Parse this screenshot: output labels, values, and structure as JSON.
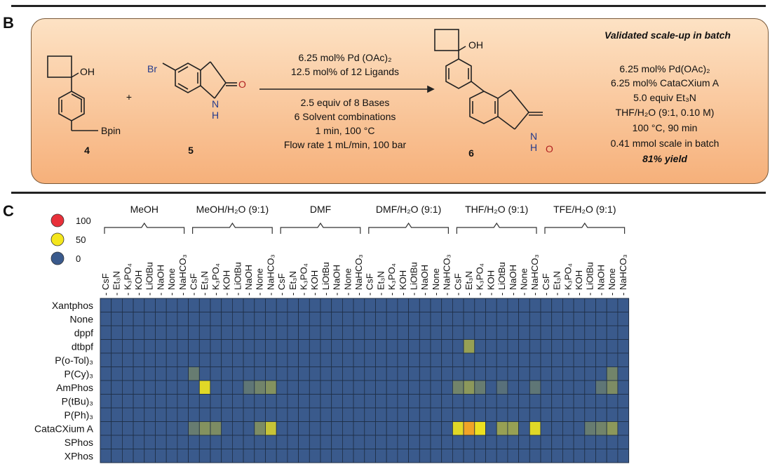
{
  "panel_b": {
    "label": "B",
    "compound_4": {
      "substituent_oh": "OH",
      "substituent_bpin": "Bpin",
      "number": "4"
    },
    "plus": "+",
    "compound_5": {
      "substituent_br": "Br",
      "nh": "N",
      "h": "H",
      "carbonyl_o": "O",
      "number": "5"
    },
    "conditions": [
      "6.25 mol% Pd (OAc)₂",
      "12.5 mol% of 12 Ligands",
      "2.5 equiv of 8 Bases",
      "6 Solvent combinations",
      "1 min, 100 °C",
      "Flow rate 1 mL/min, 100 bar"
    ],
    "compound_6": {
      "substituent_oh": "OH",
      "nh": "N",
      "h": "H",
      "carbonyl_o": "O",
      "number": "6"
    },
    "batch_title": "Validated scale-up in batch",
    "batch_conditions": [
      "6.25 mol% Pd(OAc)₂",
      "6.25 mol% CataCXium A",
      "5.0 equiv Et₃N",
      "THF/H₂O (9:1, 0.10 M)",
      "100 °C, 90 min",
      "0.41 mmol scale in batch"
    ],
    "batch_yield": "81% yield"
  },
  "panel_c": {
    "label": "C",
    "legend": [
      {
        "value": "100",
        "color": "#e8303a"
      },
      {
        "value": "50",
        "color": "#f4e61c"
      },
      {
        "value": "0",
        "color": "#3a5a8c"
      }
    ],
    "solvents": [
      "MeOH",
      "MeOH/H₂O (9:1)",
      "DMF",
      "DMF/H₂O (9:1)",
      "THF/H₂O (9:1)",
      "TFE/H₂O (9:1)"
    ],
    "bases": [
      "CsF",
      "Et₃N",
      "K₃PO₄",
      "KOH",
      "LiOtBu",
      "NaOH",
      "None",
      "NaHCO₃"
    ],
    "ligands": [
      "Xantphos",
      "None",
      "dppf",
      "dtbpf",
      "P(o-Tol)₃",
      "P(Cy)₃",
      "AmPhos",
      "P(tBu)₃",
      "P(Ph)₃",
      "CataCXium A",
      "SPhos",
      "XPhos"
    ]
  },
  "chart_data": {
    "type": "heatmap",
    "title": "",
    "x_groups": [
      "MeOH",
      "MeOH/H₂O (9:1)",
      "DMF",
      "DMF/H₂O (9:1)",
      "THF/H₂O (9:1)",
      "TFE/H₂O (9:1)"
    ],
    "x_subcategories": [
      "CsF",
      "Et₃N",
      "K₃PO₄",
      "KOH",
      "LiOtBu",
      "NaOH",
      "None",
      "NaHCO₃"
    ],
    "y_categories": [
      "Xantphos",
      "None",
      "dppf",
      "dtbpf",
      "P(o-Tol)₃",
      "P(Cy)₃",
      "AmPhos",
      "P(tBu)₃",
      "P(Ph)₃",
      "CataCXium A",
      "SPhos",
      "XPhos"
    ],
    "color_scale": {
      "min": 0,
      "mid": 50,
      "max": 100,
      "colors": [
        "#3a5a8c",
        "#f4e61c",
        "#e8303a"
      ]
    },
    "nonzero_cells": [
      {
        "ligand": "dtbpf",
        "solvent": "THF/H₂O (9:1)",
        "base": "Et₃N",
        "value": 25
      },
      {
        "ligand": "P(Cy)₃",
        "solvent": "MeOH/H₂O (9:1)",
        "base": "CsF",
        "value": 12
      },
      {
        "ligand": "P(Cy)₃",
        "solvent": "TFE/H₂O (9:1)",
        "base": "None",
        "value": 15
      },
      {
        "ligand": "AmPhos",
        "solvent": "MeOH/H₂O (9:1)",
        "base": "Et₃N",
        "value": 45
      },
      {
        "ligand": "AmPhos",
        "solvent": "MeOH/H₂O (9:1)",
        "base": "NaOH",
        "value": 10
      },
      {
        "ligand": "AmPhos",
        "solvent": "MeOH/H₂O (9:1)",
        "base": "None",
        "value": 15
      },
      {
        "ligand": "AmPhos",
        "solvent": "MeOH/H₂O (9:1)",
        "base": "NaHCO₃",
        "value": 20
      },
      {
        "ligand": "AmPhos",
        "solvent": "THF/H₂O (9:1)",
        "base": "CsF",
        "value": 15
      },
      {
        "ligand": "AmPhos",
        "solvent": "THF/H₂O (9:1)",
        "base": "Et₃N",
        "value": 22
      },
      {
        "ligand": "AmPhos",
        "solvent": "THF/H₂O (9:1)",
        "base": "K₃PO₄",
        "value": 12
      },
      {
        "ligand": "AmPhos",
        "solvent": "THF/H₂O (9:1)",
        "base": "LiOtBu",
        "value": 8
      },
      {
        "ligand": "AmPhos",
        "solvent": "THF/H₂O (9:1)",
        "base": "NaHCO₃",
        "value": 10
      },
      {
        "ligand": "AmPhos",
        "solvent": "TFE/H₂O (9:1)",
        "base": "NaOH",
        "value": 10
      },
      {
        "ligand": "AmPhos",
        "solvent": "TFE/H₂O (9:1)",
        "base": "None",
        "value": 18
      },
      {
        "ligand": "CataCXium A",
        "solvent": "MeOH/H₂O (9:1)",
        "base": "CsF",
        "value": 12
      },
      {
        "ligand": "CataCXium A",
        "solvent": "MeOH/H₂O (9:1)",
        "base": "Et₃N",
        "value": 20
      },
      {
        "ligand": "CataCXium A",
        "solvent": "MeOH/H₂O (9:1)",
        "base": "K₃PO₄",
        "value": 18
      },
      {
        "ligand": "CataCXium A",
        "solvent": "MeOH/H₂O (9:1)",
        "base": "None",
        "value": 18
      },
      {
        "ligand": "CataCXium A",
        "solvent": "MeOH/H₂O (9:1)",
        "base": "NaHCO₃",
        "value": 38
      },
      {
        "ligand": "CataCXium A",
        "solvent": "THF/H₂O (9:1)",
        "base": "CsF",
        "value": 45
      },
      {
        "ligand": "CataCXium A",
        "solvent": "THF/H₂O (9:1)",
        "base": "Et₃N",
        "value": 68
      },
      {
        "ligand": "CataCXium A",
        "solvent": "THF/H₂O (9:1)",
        "base": "K₃PO₄",
        "value": 48
      },
      {
        "ligand": "CataCXium A",
        "solvent": "THF/H₂O (9:1)",
        "base": "LiOtBu",
        "value": 25
      },
      {
        "ligand": "CataCXium A",
        "solvent": "THF/H₂O (9:1)",
        "base": "NaOH",
        "value": 25
      },
      {
        "ligand": "CataCXium A",
        "solvent": "THF/H₂O (9:1)",
        "base": "NaHCO₃",
        "value": 45
      },
      {
        "ligand": "CataCXium A",
        "solvent": "TFE/H₂O (9:1)",
        "base": "LiOtBu",
        "value": 12
      },
      {
        "ligand": "CataCXium A",
        "solvent": "TFE/H₂O (9:1)",
        "base": "NaOH",
        "value": 15
      },
      {
        "ligand": "CataCXium A",
        "solvent": "TFE/H₂O (9:1)",
        "base": "None",
        "value": 22
      }
    ],
    "default_value": 0
  }
}
